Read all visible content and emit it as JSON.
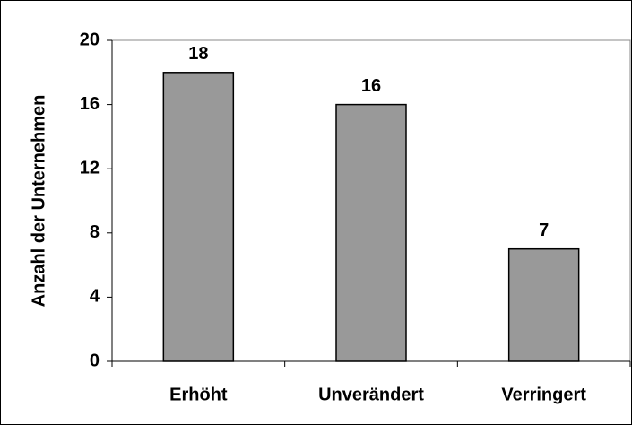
{
  "chart_data": {
    "type": "bar",
    "y_label": "Anzahl der Unternehmen",
    "categories": [
      "Erhöht",
      "Unverändert",
      "Verringert"
    ],
    "values": [
      18,
      16,
      7
    ],
    "color": "#999999",
    "ylim": [
      0,
      20
    ],
    "yticks": [
      0,
      4,
      8,
      12,
      16,
      20
    ],
    "grid": false
  }
}
